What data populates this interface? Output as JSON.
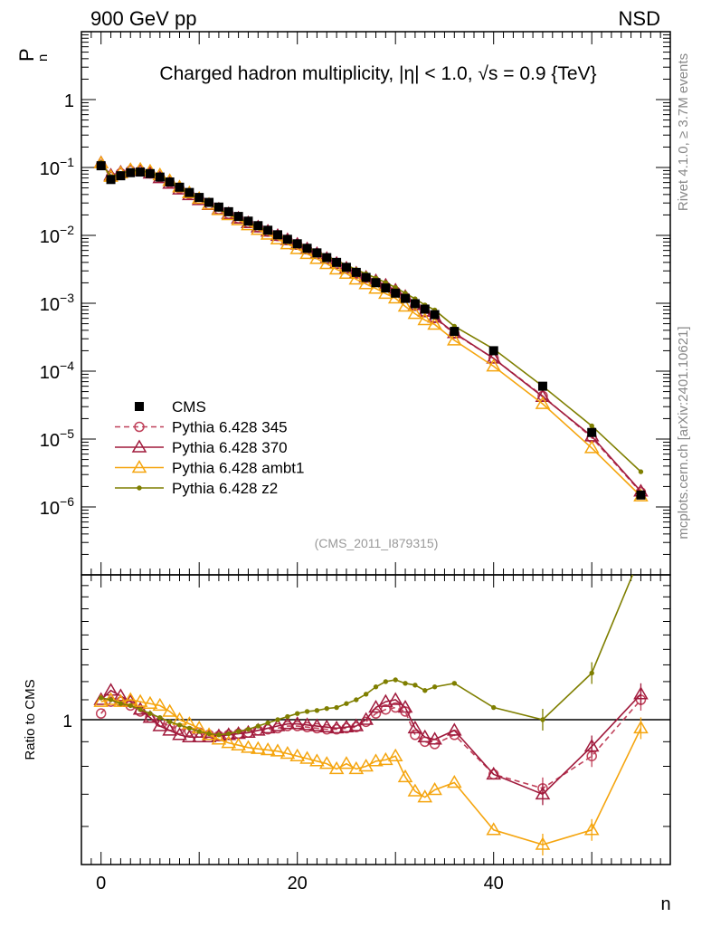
{
  "header": {
    "left": "900 GeV pp",
    "right": "NSD"
  },
  "side_text": {
    "rivet": "Rivet 4.1.0, ≥ 3.7M events",
    "mcplots": "mcplots.cern.ch [arXiv:2401.10621]"
  },
  "chart_data": {
    "type": "line",
    "title": "Charged hadron multiplicity, |η| < 1.0, √s = 0.9 {TeV}",
    "analysis_id": "(CMS_2011_I879315)",
    "xlabel": "n",
    "ylabel": "P_n",
    "ylabel_main": "P",
    "ylabel_sub": "n",
    "xlim": [
      -2,
      58
    ],
    "ylim": [
      1e-07,
      10
    ],
    "yscale": "log",
    "x_ticks": [
      0,
      20,
      40
    ],
    "x_tick_labels": [
      "0",
      "20",
      "40"
    ],
    "y_ticks": [
      1,
      0.1,
      0.01,
      0.001,
      0.0001,
      1e-05,
      1e-06
    ],
    "y_tick_labels": [
      {
        "base": "1",
        "exp": ""
      },
      {
        "base": "10",
        "exp": "−1"
      },
      {
        "base": "10",
        "exp": "−2"
      },
      {
        "base": "10",
        "exp": "−3"
      },
      {
        "base": "10",
        "exp": "−4"
      },
      {
        "base": "10",
        "exp": "−5"
      },
      {
        "base": "10",
        "exp": "−6"
      }
    ],
    "x": [
      0,
      1,
      2,
      3,
      4,
      5,
      6,
      7,
      8,
      9,
      10,
      11,
      12,
      13,
      14,
      15,
      16,
      17,
      18,
      19,
      20,
      21,
      22,
      23,
      24,
      25,
      26,
      27,
      28,
      29,
      30,
      31,
      32,
      33,
      34,
      36,
      40,
      45,
      50,
      55
    ],
    "cms_values": [
      0.106,
      0.0665,
      0.0755,
      0.0838,
      0.0856,
      0.0812,
      0.0722,
      0.0611,
      0.0512,
      0.0428,
      0.0362,
      0.0306,
      0.0261,
      0.0223,
      0.019,
      0.0162,
      0.0139,
      0.0119,
      0.0102,
      0.00875,
      0.00752,
      0.00645,
      0.00552,
      0.0047,
      0.004,
      0.00338,
      0.00285,
      0.0024,
      0.00201,
      0.00168,
      0.00141,
      0.00118,
      0.000985,
      0.00082,
      0.00068,
      0.000385,
      0.0002,
      6e-05,
      1.25e-05,
      1.5e-06
    ],
    "series": [
      {
        "name": "Pythia 6.428 345",
        "color": "#c0415a",
        "marker": "circle",
        "dashed": true,
        "ratios": [
          1.03,
          1.09,
          1.09,
          1.07,
          1.04,
          1.01,
          0.99,
          0.97,
          0.955,
          0.945,
          0.94,
          0.93,
          0.925,
          0.93,
          0.935,
          0.94,
          0.95,
          0.955,
          0.96,
          0.97,
          0.97,
          0.965,
          0.96,
          0.955,
          0.955,
          0.96,
          0.965,
          0.99,
          1.03,
          1.05,
          1.06,
          1.04,
          0.93,
          0.9,
          0.89,
          0.93,
          0.77,
          0.72,
          0.84,
          1.1
        ]
      },
      {
        "name": "Pythia 6.428 370",
        "color": "#a01a3c",
        "marker": "triangle",
        "dashed": false,
        "ratios": [
          1.1,
          1.15,
          1.12,
          1.09,
          1.05,
          1.01,
          0.97,
          0.95,
          0.93,
          0.92,
          0.92,
          0.92,
          0.925,
          0.93,
          0.935,
          0.94,
          0.95,
          0.96,
          0.97,
          0.98,
          0.98,
          0.975,
          0.97,
          0.965,
          0.96,
          0.965,
          0.97,
          1.0,
          1.06,
          1.09,
          1.1,
          1.06,
          0.96,
          0.92,
          0.91,
          0.95,
          0.77,
          0.7,
          0.88,
          1.13
        ]
      },
      {
        "name": "Pythia 6.428 ambt1",
        "color": "#f5a50f",
        "marker": "triangle",
        "dashed": false,
        "ratios": [
          1.09,
          1.1,
          1.09,
          1.1,
          1.09,
          1.08,
          1.07,
          1.04,
          1.0,
          0.98,
          0.96,
          0.93,
          0.91,
          0.895,
          0.885,
          0.875,
          0.87,
          0.865,
          0.86,
          0.85,
          0.84,
          0.83,
          0.82,
          0.81,
          0.79,
          0.81,
          0.79,
          0.8,
          0.82,
          0.825,
          0.84,
          0.76,
          0.71,
          0.69,
          0.715,
          0.74,
          0.59,
          0.55,
          0.59,
          0.96
        ]
      },
      {
        "name": "Pythia 6.428 z2",
        "color": "#7f7f00",
        "marker": "dot",
        "dashed": false,
        "ratios": [
          1.11,
          1.1,
          1.08,
          1.07,
          1.05,
          1.03,
          1.01,
          0.99,
          0.975,
          0.96,
          0.945,
          0.935,
          0.93,
          0.935,
          0.945,
          0.955,
          0.97,
          0.985,
          1.0,
          1.015,
          1.03,
          1.04,
          1.045,
          1.055,
          1.06,
          1.08,
          1.1,
          1.13,
          1.17,
          1.2,
          1.21,
          1.19,
          1.18,
          1.15,
          1.17,
          1.19,
          1.06,
          1.0,
          1.25,
          2.2
        ]
      }
    ],
    "cms_legend": "CMS",
    "ratio_panel": {
      "ylabel": "Ratio to CMS",
      "ylim": [
        0.5,
        2.0
      ],
      "yscale": "log",
      "tick_1_label": "1"
    }
  }
}
